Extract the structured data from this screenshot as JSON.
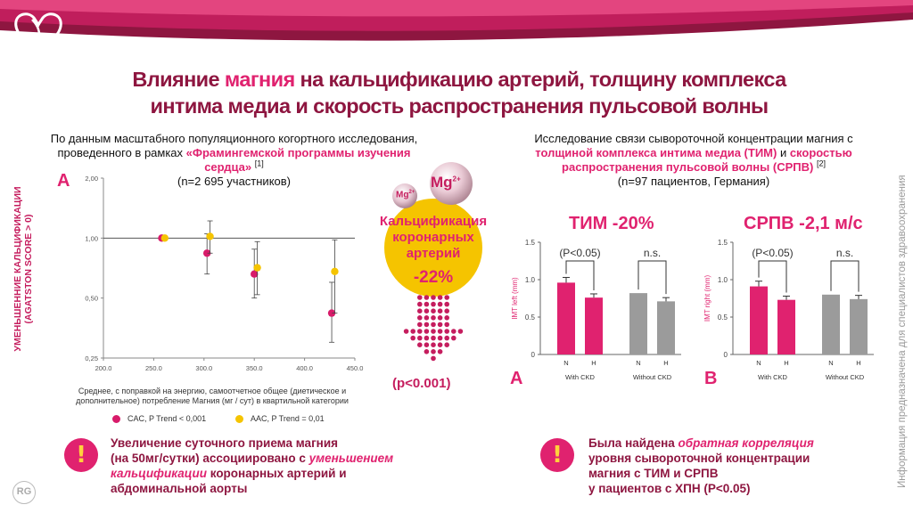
{
  "title": {
    "part1": "Влияние ",
    "accent": "магния",
    "part2": " на кальцификацию артерий, толщину комплекса",
    "line2": "интима медиа и скорость распространения пульсовой волны"
  },
  "side_note": "Информация предназначена для специалистов здравоохранения",
  "left": {
    "intro_line1": "По данным масштабного популяционного когортного исследования,",
    "intro_line2": "проведенного в рамках ",
    "intro_highlight": "«Фрамингемской программы изучения сердца»",
    "intro_ref": "[1]",
    "intro_count": "(n=2 695 участников)",
    "panel_letter": "A",
    "y_label": "УМЕНЬШЕННИЕ КАЛЬЦИФИКАЦИИ (AGATSTON SCORE > 0)",
    "x_caption": "Среднее, с поправкой на энергию, самоотчетное общее (диетическое и дополнительное) потребление Магния (мг / сут) в квартильной категории",
    "legend_cac": "CAC, P Trend < 0,001",
    "legend_aac": "AAC, P Trend = 0,01"
  },
  "middle": {
    "mg_big": "Mg",
    "mg_big_sup": "2+",
    "mg_small": "Mg",
    "mg_small_sup": "2+",
    "label_line1": "Кальцификация",
    "label_line2": "коронарных",
    "label_line3": "артерий",
    "percent": "-22%",
    "pvalue": "(p<0.001)"
  },
  "right": {
    "intro_line1": "Исследование связи сывороточной концентрации магния с",
    "intro_pink1": "толщиной комплекса интима медиа (ТИМ)",
    "intro_and": " и ",
    "intro_pink2": "скоростью распространения пульсовой волны (СРПВ)",
    "intro_ref": "[2]",
    "intro_count": "(n=97 пациентов, Германия)",
    "title_a": "ТИМ -20%",
    "title_b": "СРПВ -2,1 м/с",
    "letter_a": "A",
    "letter_b": "B"
  },
  "conclusion_left": {
    "p1": "Увеличение суточного приема магния",
    "p2": "(на 50мг/сутки) ассоциировано с ",
    "p2i": "уменьшением",
    "p3i": "кальцификации",
    "p3": " коронарных артерий и",
    "p4": "абдоминальной аорты",
    "mark": "!"
  },
  "conclusion_right": {
    "p1": "Была найдена ",
    "p1i": "обратная корреляция",
    "p2": "уровня сывороточной концентрации",
    "p3": "магния с ТИМ и СРПВ",
    "p4": "у пациентов с ХПН (P<0.05)",
    "mark": "!"
  },
  "logo_text": "RG",
  "colors": {
    "magenta": "#e0226f",
    "dark": "#8e1640",
    "yellow": "#f5c400",
    "gray": "#9b9b9b"
  },
  "chart_data": [
    {
      "type": "scatter",
      "xlabel": "Среднее, с поправкой на энергию, самоотчетное общее (диетическое и дополнительное) потребление Магния (мг / сут) в квартильной категории",
      "ylabel": "УМЕНЬШЕННИЕ КАЛЬЦИФИКАЦИИ (AGATSTON SCORE > 0)",
      "xlim": [
        200,
        450
      ],
      "ylim": [
        0.25,
        2.0
      ],
      "y_scale": "log",
      "x_ticks": [
        "200.0",
        "250.0",
        "300.0",
        "350.0",
        "400.0",
        "450.0"
      ],
      "y_ticks": [
        "0,25",
        "0,50",
        "1,00",
        "2,00"
      ],
      "reference_line": 1.0,
      "series": [
        {
          "name": "CAC, P Trend < 0,001",
          "color": "#d81b6a",
          "x": [
            258,
            303,
            350,
            427
          ],
          "y": [
            1.0,
            0.84,
            0.66,
            0.42
          ],
          "ci_low": [
            null,
            0.66,
            0.5,
            0.3
          ],
          "ci_high": [
            null,
            1.05,
            0.88,
            0.6
          ]
        },
        {
          "name": "AAC, P Trend = 0,01",
          "color": "#f5c400",
          "x": [
            261,
            306,
            353,
            430
          ],
          "y": [
            1.0,
            1.02,
            0.71,
            0.68
          ],
          "ci_low": [
            null,
            0.84,
            0.52,
            0.42
          ],
          "ci_high": [
            null,
            1.22,
            0.96,
            0.98
          ]
        }
      ]
    },
    {
      "type": "bar",
      "panel": "A",
      "title": "ТИМ -20%",
      "ylabel": "IMT left (mm)",
      "ylim": [
        0,
        1.5
      ],
      "y_ticks": [
        "0",
        "0.5",
        "1.0",
        "1.5"
      ],
      "categories": [
        "N",
        "H",
        "N",
        "H"
      ],
      "groups": [
        "With CKD",
        "Without CKD"
      ],
      "values": [
        0.96,
        0.76,
        0.82,
        0.71
      ],
      "errors": [
        0.07,
        0.05,
        0.0,
        0.05
      ],
      "colors": [
        "#e0226f",
        "#e0226f",
        "#9b9b9b",
        "#9b9b9b"
      ],
      "brackets": [
        "(P<0.05)",
        "n.s."
      ]
    },
    {
      "type": "bar",
      "panel": "B",
      "title": "СРПВ -2,1 м/с",
      "ylabel": "IMT right (mm)",
      "ylim": [
        0,
        1.5
      ],
      "y_ticks": [
        "0",
        "0.5",
        "1.0",
        "1.5"
      ],
      "categories": [
        "N",
        "H",
        "N",
        "H"
      ],
      "groups": [
        "With CKD",
        "Without CKD"
      ],
      "values": [
        0.91,
        0.73,
        0.8,
        0.74
      ],
      "errors": [
        0.07,
        0.05,
        0.0,
        0.05
      ],
      "colors": [
        "#e0226f",
        "#e0226f",
        "#9b9b9b",
        "#9b9b9b"
      ],
      "brackets": [
        "(P<0.05)",
        "n.s."
      ]
    }
  ]
}
